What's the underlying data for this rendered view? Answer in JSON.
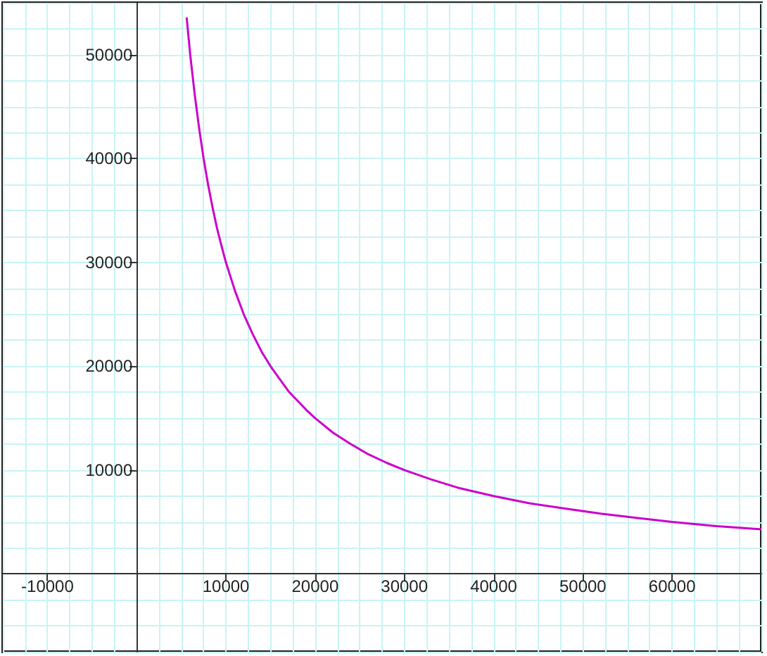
{
  "chart_data": {
    "type": "line",
    "x": [
      5600,
      6000,
      6500,
      7000,
      7500,
      8000,
      8500,
      9000,
      9500,
      10000,
      11000,
      12000,
      13000,
      14000,
      15000,
      16000,
      17000,
      18000,
      19000,
      20000,
      22000,
      24000,
      26000,
      28000,
      30000,
      33000,
      36000,
      40000,
      44000,
      48000,
      52000,
      56000,
      60000,
      65000,
      70000
    ],
    "series": [
      {
        "color": "#cc00cc",
        "values": [
          53600,
          50000,
          46200,
          42900,
          40000,
          37500,
          35300,
          33300,
          31600,
          30000,
          27300,
          25000,
          23100,
          21400,
          20000,
          18800,
          17600,
          16700,
          15800,
          15000,
          13600,
          12500,
          11500,
          10700,
          10000,
          9100,
          8300,
          7500,
          6800,
          6300,
          5800,
          5400,
          5000,
          4600,
          4300
        ]
      }
    ],
    "xlim": [
      -15000,
      70000
    ],
    "ylim": [
      -7500,
      55000
    ],
    "xticks": [
      -10000,
      10000,
      20000,
      30000,
      40000,
      50000,
      60000
    ],
    "yticks": [
      10000,
      20000,
      30000,
      40000,
      50000
    ],
    "grid": true,
    "marker": "none",
    "line_style": "solid"
  }
}
